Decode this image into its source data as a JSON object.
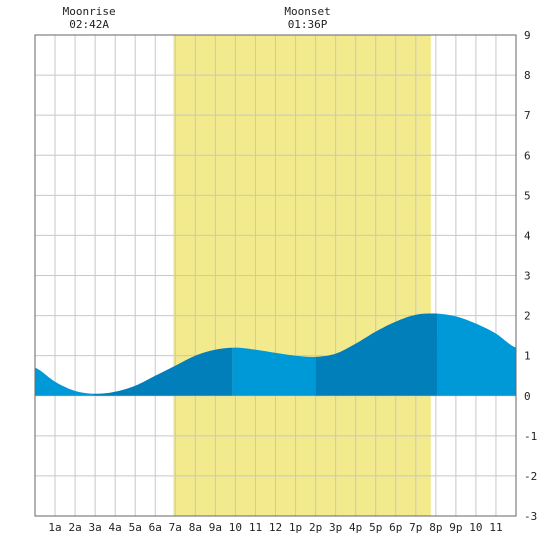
{
  "chart_data": {
    "type": "area",
    "title": "",
    "xlabel": "",
    "ylabel": "",
    "xlim": [
      0,
      24
    ],
    "ylim": [
      -3,
      9
    ],
    "y_ticks": [
      -3,
      -2,
      -1,
      0,
      1,
      2,
      3,
      4,
      5,
      6,
      7,
      8,
      9
    ],
    "x_tick_labels": [
      "1a",
      "2a",
      "3a",
      "4a",
      "5a",
      "6a",
      "7a",
      "8a",
      "9a",
      "10",
      "11",
      "12",
      "1p",
      "2p",
      "3p",
      "4p",
      "5p",
      "6p",
      "7p",
      "8p",
      "9p",
      "10",
      "11"
    ],
    "grid": true,
    "daylight": {
      "start_hour": 6.9,
      "end_hour": 19.75
    },
    "annotations": [
      {
        "label": "Moonrise",
        "time": "02:42A",
        "hour": 2.7
      },
      {
        "label": "Moonset",
        "time": "01:36P",
        "hour": 13.6
      }
    ],
    "series": [
      {
        "x": [
          0,
          1,
          2,
          3,
          4,
          5,
          6,
          7,
          8,
          9,
          10,
          11,
          12,
          13,
          14,
          15,
          16,
          17,
          18,
          19,
          20,
          21,
          22,
          23,
          24
        ],
        "values": [
          0.7,
          0.35,
          0.12,
          0.05,
          0.1,
          0.25,
          0.5,
          0.75,
          1.0,
          1.15,
          1.2,
          1.15,
          1.07,
          1.0,
          0.97,
          1.05,
          1.3,
          1.6,
          1.85,
          2.02,
          2.05,
          1.98,
          1.8,
          1.55,
          1.2
        ]
      }
    ],
    "shade_bands": [
      {
        "from": 0,
        "to": 2.9,
        "shade": "light"
      },
      {
        "from": 2.9,
        "to": 9.85,
        "shade": "dark"
      },
      {
        "from": 9.85,
        "to": 14.0,
        "shade": "light"
      },
      {
        "from": 14.0,
        "to": 20.1,
        "shade": "dark"
      },
      {
        "from": 20.1,
        "to": 24,
        "shade": "light"
      }
    ],
    "colors": {
      "daylight": "#f2ea8c",
      "water_light": "#0099d8",
      "water_dark": "#007fba",
      "grid": "#c8c8c8",
      "axis": "#666666"
    }
  }
}
